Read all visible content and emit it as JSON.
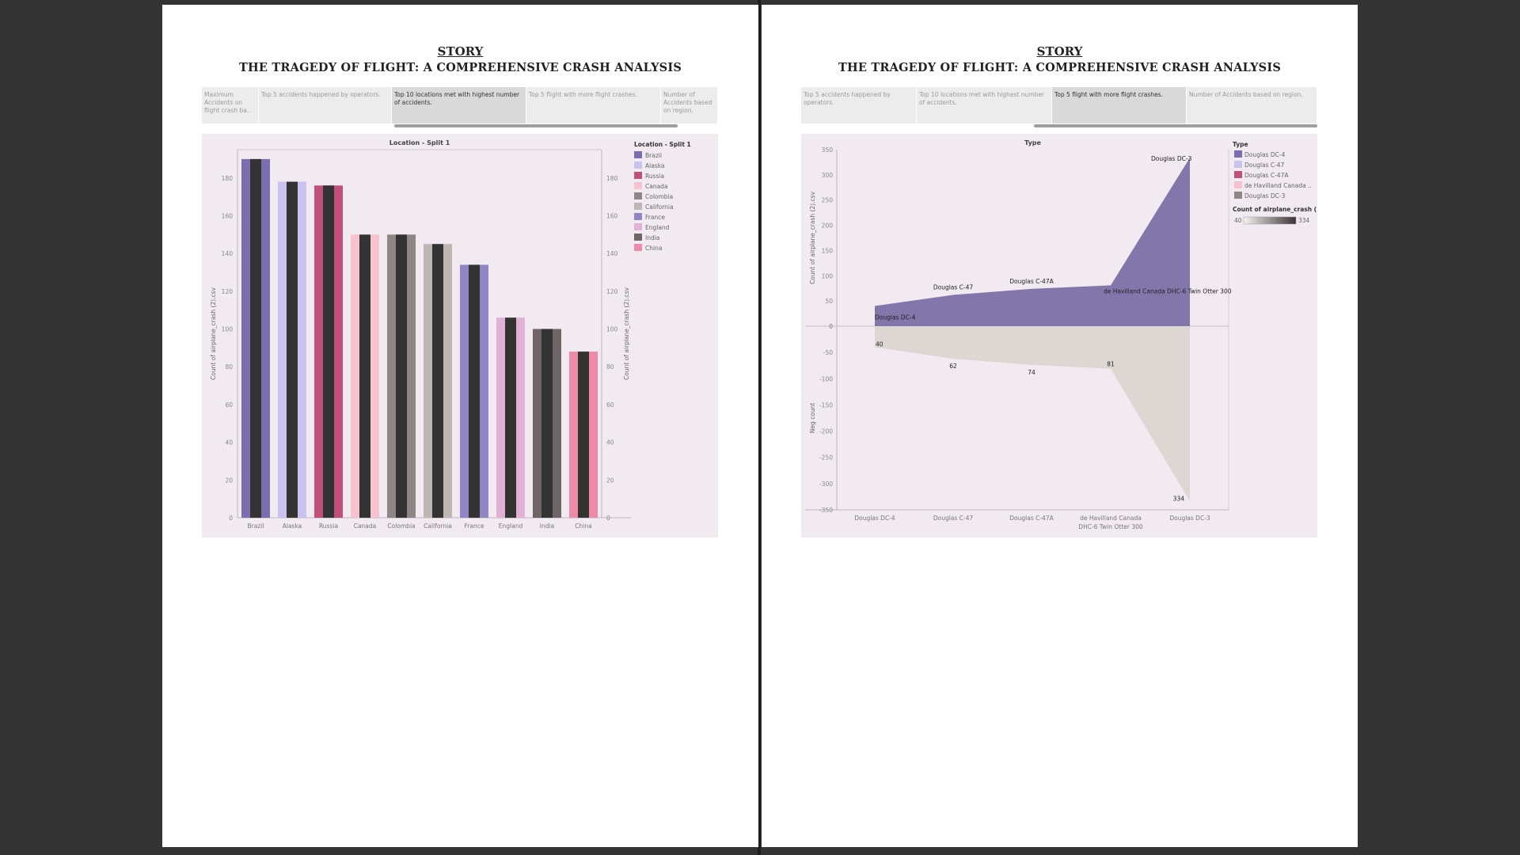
{
  "left": {
    "story_label": "STORY",
    "story_subtitle": "THE TRAGEDY OF FLIGHT: A COMPREHENSIVE CRASH ANALYSIS",
    "tabs": [
      {
        "label": "Maximum Accidents on flight crash ba..",
        "active": false
      },
      {
        "label": "Top 5 accidents happened by operators.",
        "active": false
      },
      {
        "label": "Top 10 locations met with highest number of accidents.",
        "active": true
      },
      {
        "label": "Top 5 flight with more flight crashes.",
        "active": false
      },
      {
        "label": "Number of Accidents based on region.",
        "active": false
      }
    ]
  },
  "right": {
    "story_label": "STORY",
    "story_subtitle": "THE TRAGEDY OF FLIGHT: A COMPREHENSIVE CRASH ANALYSIS",
    "tabs": [
      {
        "label": "Top 5 accidents happened by operators.",
        "active": false
      },
      {
        "label": "Top 10 locations met with highest number of accidents.",
        "active": false
      },
      {
        "label": "Top 5 flight with more flight crashes.",
        "active": true
      },
      {
        "label": "Number of Accidents based on region.",
        "active": false
      }
    ]
  },
  "chart_data": [
    {
      "type": "bar",
      "title": "Location - Split 1",
      "ylabel": "Count of airplane_crash (2).csv",
      "ylabel_right": "Count of airplane_crash (2).csv",
      "ylim": [
        0,
        195
      ],
      "yticks": [
        0,
        20,
        40,
        60,
        80,
        100,
        120,
        140,
        160,
        180
      ],
      "categories": [
        "Brazil",
        "Alaska",
        "Russia",
        "Canada",
        "Colombia",
        "California",
        "France",
        "England",
        "India",
        "China"
      ],
      "values": [
        190,
        178,
        176,
        150,
        150,
        145,
        134,
        106,
        100,
        88
      ],
      "colors": [
        "#7b6eb0",
        "#c9c2ee",
        "#c0507a",
        "#f7c2cf",
        "#8e8585",
        "#bdb6b3",
        "#9086c6",
        "#e0b0d5",
        "#6e6666",
        "#ec8aa8"
      ],
      "overlay_color": "#333333",
      "legend_title": "Location - Split 1",
      "legend": [
        "Brazil",
        "Alaska",
        "Russia",
        "Canada",
        "Colombia",
        "California",
        "France",
        "England",
        "India",
        "China"
      ],
      "legend_position": "right",
      "grid": false
    },
    {
      "type": "area",
      "title": "Type",
      "ylabel": "Count of airplane_crash (2).csv",
      "ylabel_lower": "Neg count",
      "categories": [
        "Douglas DC-4",
        "Douglas C-47",
        "Douglas C-47A",
        "de Havilland Canada DHC-6 Twin Otter 300",
        "Douglas DC-3"
      ],
      "category_labels": [
        [
          "Douglas DC-4"
        ],
        [
          "Douglas C-47"
        ],
        [
          "Douglas C-47A"
        ],
        [
          "de Havilland Canada",
          "DHC-6 Twin Otter 300"
        ],
        [
          "Douglas DC-3"
        ]
      ],
      "series": [
        {
          "values": [
            40,
            62,
            74,
            81,
            334
          ],
          "color": "#8276ab"
        },
        {
          "values": [
            -40,
            -62,
            -74,
            -81,
            -334
          ],
          "color": "#ddd7d3"
        }
      ],
      "point_labels_upper": [
        "Douglas DC-4",
        "Douglas C-47",
        "Douglas C-47A",
        "de Havilland Canada DHC-6 Twin Otter 300",
        "Douglas DC-3"
      ],
      "point_labels_lower": [
        "40",
        "62",
        "74",
        "81",
        "334"
      ],
      "ylim_upper": [
        0,
        350
      ],
      "yticks_upper": [
        0,
        50,
        100,
        150,
        200,
        250,
        300,
        350
      ],
      "ylim_lower": [
        -350,
        0
      ],
      "yticks_lower": [
        0,
        -50,
        -100,
        -150,
        -200,
        -250,
        -300,
        -350
      ],
      "legend_title": "Type",
      "legend": [
        "Douglas DC-4",
        "Douglas C-47",
        "Douglas C-47A",
        "de Havilland Canada ..",
        "Douglas DC-3"
      ],
      "legend_colors": [
        "#7b6eb0",
        "#c9c2ee",
        "#c0507a",
        "#f7c2cf",
        "#8e8585"
      ],
      "color_legend_title": "Count of airplane_crash (..",
      "color_legend_min": "40",
      "color_legend_max": "334",
      "color_legend_colors": [
        "#f4f1ef",
        "#3a3434"
      ],
      "legend_position": "right",
      "grid": false
    }
  ]
}
